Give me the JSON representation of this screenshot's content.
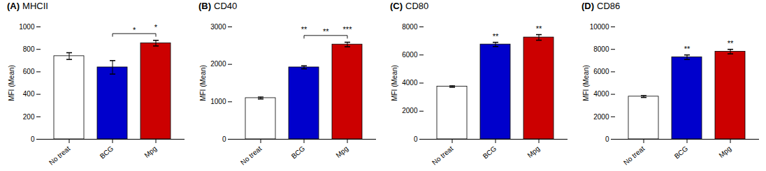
{
  "chart_data": [
    {
      "type": "bar",
      "title": "(A) MHCII",
      "ylabel": "MFI (Mean)",
      "categories": [
        "No treat",
        "BCG",
        "Mpg"
      ],
      "values": [
        740,
        640,
        855
      ],
      "errors": [
        30,
        60,
        25
      ],
      "colors": [
        "white",
        "#0000CC",
        "#CC0000"
      ],
      "ylim": [
        0,
        1000
      ],
      "yticks": [
        0,
        200,
        400,
        600,
        800,
        1000
      ],
      "grid": false,
      "annotations": [
        {
          "text": "*",
          "category": "Mpg"
        },
        {
          "text": "*",
          "from": "BCG",
          "to": "Mpg"
        }
      ]
    },
    {
      "type": "bar",
      "title": "(B) CD40",
      "ylabel": "MFI (Mean)",
      "categories": [
        "No treat",
        "BCG",
        "Mpg"
      ],
      "values": [
        1100,
        1920,
        2530
      ],
      "errors": [
        25,
        40,
        60
      ],
      "colors": [
        "white",
        "#0000CC",
        "#CC0000"
      ],
      "ylim": [
        0,
        3000
      ],
      "yticks": [
        0,
        1000,
        2000,
        3000
      ],
      "grid": false,
      "annotations": [
        {
          "text": "**",
          "category": "BCG"
        },
        {
          "text": "***",
          "category": "Mpg"
        },
        {
          "text": "**",
          "from": "BCG",
          "to": "Mpg"
        }
      ]
    },
    {
      "type": "bar",
      "title": "(C) CD80",
      "ylabel": "MFI (Mean)",
      "categories": [
        "No treat",
        "BCG",
        "Mpg"
      ],
      "values": [
        3750,
        6750,
        7250
      ],
      "errors": [
        50,
        150,
        200
      ],
      "colors": [
        "white",
        "#0000CC",
        "#CC0000"
      ],
      "ylim": [
        0,
        8000
      ],
      "yticks": [
        0,
        2000,
        4000,
        6000,
        8000
      ],
      "grid": false,
      "annotations": [
        {
          "text": "**",
          "category": "BCG"
        },
        {
          "text": "**",
          "category": "Mpg"
        }
      ]
    },
    {
      "type": "bar",
      "title": "(D) CD86",
      "ylabel": "MFI (Mean)",
      "categories": [
        "No treat",
        "BCG",
        "Mpg"
      ],
      "values": [
        3800,
        7300,
        7800
      ],
      "errors": [
        80,
        200,
        200
      ],
      "colors": [
        "white",
        "#0000CC",
        "#CC0000"
      ],
      "ylim": [
        0,
        10000
      ],
      "yticks": [
        0,
        2000,
        4000,
        6000,
        8000,
        10000
      ],
      "grid": false,
      "annotations": [
        {
          "text": "**",
          "category": "BCG"
        },
        {
          "text": "**",
          "category": "Mpg"
        }
      ]
    }
  ]
}
